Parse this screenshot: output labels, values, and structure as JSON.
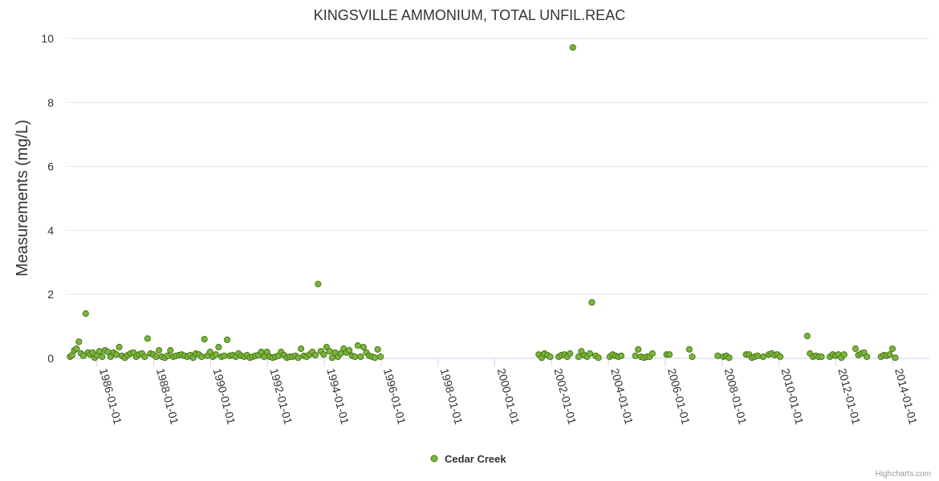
{
  "chart_data": {
    "type": "scatter",
    "title": "KINGSVILLE AMMONIUM, TOTAL UNFIL.REAC",
    "xlabel": "",
    "ylabel": "Measurements (mg/L)",
    "ylim": [
      0,
      10
    ],
    "yticks": [
      "0",
      "2",
      "4",
      "6",
      "8",
      "10"
    ],
    "xlim": [
      1984.9,
      2015.3
    ],
    "xticks": [
      {
        "label": "1986-01-01",
        "x": 1986.0
      },
      {
        "label": "1988-01-01",
        "x": 1988.0
      },
      {
        "label": "1990-01-01",
        "x": 1990.0
      },
      {
        "label": "1992-01-01",
        "x": 1992.0
      },
      {
        "label": "1994-01-01",
        "x": 1994.0
      },
      {
        "label": "1996-01-01",
        "x": 1996.0
      },
      {
        "label": "1998-01-01",
        "x": 1998.0
      },
      {
        "label": "2000-01-01",
        "x": 2000.0
      },
      {
        "label": "2002-01-01",
        "x": 2002.0
      },
      {
        "label": "2004-01-01",
        "x": 2004.0
      },
      {
        "label": "2006-01-01",
        "x": 2006.0
      },
      {
        "label": "2008-01-01",
        "x": 2008.0
      },
      {
        "label": "2010-01-01",
        "x": 2010.0
      },
      {
        "label": "2012-01-01",
        "x": 2012.0
      },
      {
        "label": "2014-01-01",
        "x": 2014.0
      }
    ],
    "grid": true,
    "legend_position": "bottom-center",
    "credits": "Highcharts.com",
    "series": [
      {
        "name": "Cedar Creek",
        "color": "#7cb342",
        "border_color": "#4a7a10",
        "points": [
          [
            1985.05,
            0.05
          ],
          [
            1985.12,
            0.1
          ],
          [
            1985.2,
            0.25
          ],
          [
            1985.28,
            0.3
          ],
          [
            1985.36,
            0.52
          ],
          [
            1985.44,
            0.15
          ],
          [
            1985.52,
            0.08
          ],
          [
            1985.6,
            1.4
          ],
          [
            1985.68,
            0.18
          ],
          [
            1985.76,
            0.12
          ],
          [
            1985.84,
            0.18
          ],
          [
            1985.92,
            0.02
          ],
          [
            1986.0,
            0.1
          ],
          [
            1986.08,
            0.22
          ],
          [
            1986.18,
            0.05
          ],
          [
            1986.28,
            0.25
          ],
          [
            1986.38,
            0.2
          ],
          [
            1986.48,
            0.05
          ],
          [
            1986.58,
            0.18
          ],
          [
            1986.68,
            0.12
          ],
          [
            1986.78,
            0.35
          ],
          [
            1986.88,
            0.08
          ],
          [
            1986.98,
            0.02
          ],
          [
            1987.08,
            0.1
          ],
          [
            1987.18,
            0.15
          ],
          [
            1987.28,
            0.18
          ],
          [
            1987.38,
            0.05
          ],
          [
            1987.48,
            0.12
          ],
          [
            1987.58,
            0.15
          ],
          [
            1987.68,
            0.05
          ],
          [
            1987.78,
            0.62
          ],
          [
            1987.88,
            0.15
          ],
          [
            1987.98,
            0.12
          ],
          [
            1988.08,
            0.05
          ],
          [
            1988.18,
            0.25
          ],
          [
            1988.28,
            0.05
          ],
          [
            1988.38,
            0.02
          ],
          [
            1988.48,
            0.08
          ],
          [
            1988.58,
            0.25
          ],
          [
            1988.68,
            0.05
          ],
          [
            1988.78,
            0.08
          ],
          [
            1988.88,
            0.1
          ],
          [
            1988.98,
            0.12
          ],
          [
            1989.08,
            0.08
          ],
          [
            1989.18,
            0.05
          ],
          [
            1989.28,
            0.1
          ],
          [
            1989.38,
            0.02
          ],
          [
            1989.48,
            0.15
          ],
          [
            1989.58,
            0.12
          ],
          [
            1989.68,
            0.05
          ],
          [
            1989.78,
            0.6
          ],
          [
            1989.88,
            0.08
          ],
          [
            1989.98,
            0.2
          ],
          [
            1990.08,
            0.05
          ],
          [
            1990.18,
            0.12
          ],
          [
            1990.28,
            0.35
          ],
          [
            1990.38,
            0.05
          ],
          [
            1990.48,
            0.08
          ],
          [
            1990.58,
            0.58
          ],
          [
            1990.68,
            0.08
          ],
          [
            1990.78,
            0.1
          ],
          [
            1990.88,
            0.05
          ],
          [
            1990.98,
            0.15
          ],
          [
            1991.08,
            0.08
          ],
          [
            1991.18,
            0.05
          ],
          [
            1991.28,
            0.1
          ],
          [
            1991.38,
            0.02
          ],
          [
            1991.48,
            0.05
          ],
          [
            1991.58,
            0.08
          ],
          [
            1991.68,
            0.1
          ],
          [
            1991.78,
            0.2
          ],
          [
            1991.88,
            0.05
          ],
          [
            1991.98,
            0.2
          ],
          [
            1992.08,
            0.05
          ],
          [
            1992.18,
            0.02
          ],
          [
            1992.28,
            0.05
          ],
          [
            1992.38,
            0.08
          ],
          [
            1992.48,
            0.2
          ],
          [
            1992.58,
            0.1
          ],
          [
            1992.68,
            0.02
          ],
          [
            1992.78,
            0.05
          ],
          [
            1992.88,
            0.05
          ],
          [
            1992.98,
            0.08
          ],
          [
            1993.08,
            0.02
          ],
          [
            1993.18,
            0.3
          ],
          [
            1993.28,
            0.08
          ],
          [
            1993.38,
            0.05
          ],
          [
            1993.48,
            0.12
          ],
          [
            1993.58,
            0.2
          ],
          [
            1993.68,
            0.1
          ],
          [
            1993.78,
            2.32
          ],
          [
            1993.88,
            0.22
          ],
          [
            1993.98,
            0.12
          ],
          [
            1994.08,
            0.35
          ],
          [
            1994.18,
            0.22
          ],
          [
            1994.28,
            0.02
          ],
          [
            1994.38,
            0.18
          ],
          [
            1994.48,
            0.05
          ],
          [
            1994.58,
            0.15
          ],
          [
            1994.68,
            0.3
          ],
          [
            1994.78,
            0.18
          ],
          [
            1994.88,
            0.25
          ],
          [
            1994.98,
            0.08
          ],
          [
            1995.08,
            0.05
          ],
          [
            1995.18,
            0.4
          ],
          [
            1995.28,
            0.05
          ],
          [
            1995.38,
            0.35
          ],
          [
            1995.48,
            0.18
          ],
          [
            1995.58,
            0.08
          ],
          [
            1995.68,
            0.05
          ],
          [
            1995.78,
            0.02
          ],
          [
            1995.88,
            0.28
          ],
          [
            1995.98,
            0.05
          ],
          [
            2001.55,
            0.12
          ],
          [
            2001.65,
            0.02
          ],
          [
            2001.75,
            0.15
          ],
          [
            2001.85,
            0.1
          ],
          [
            2001.95,
            0.05
          ],
          [
            2002.25,
            0.05
          ],
          [
            2002.35,
            0.1
          ],
          [
            2002.45,
            0.12
          ],
          [
            2002.55,
            0.05
          ],
          [
            2002.65,
            0.15
          ],
          [
            2002.75,
            9.72
          ],
          [
            2002.95,
            0.05
          ],
          [
            2003.05,
            0.22
          ],
          [
            2003.15,
            0.1
          ],
          [
            2003.25,
            0.05
          ],
          [
            2003.35,
            0.15
          ],
          [
            2003.42,
            1.75
          ],
          [
            2003.55,
            0.08
          ],
          [
            2003.65,
            0.02
          ],
          [
            2004.05,
            0.05
          ],
          [
            2004.15,
            0.12
          ],
          [
            2004.25,
            0.08
          ],
          [
            2004.35,
            0.05
          ],
          [
            2004.45,
            0.08
          ],
          [
            2004.95,
            0.08
          ],
          [
            2005.05,
            0.28
          ],
          [
            2005.15,
            0.05
          ],
          [
            2005.25,
            0.02
          ],
          [
            2005.35,
            0.05
          ],
          [
            2005.45,
            0.05
          ],
          [
            2005.55,
            0.15
          ],
          [
            2006.05,
            0.12
          ],
          [
            2006.15,
            0.12
          ],
          [
            2006.85,
            0.28
          ],
          [
            2006.95,
            0.05
          ],
          [
            2007.85,
            0.08
          ],
          [
            2008.05,
            0.05
          ],
          [
            2008.15,
            0.08
          ],
          [
            2008.25,
            0.02
          ],
          [
            2008.85,
            0.12
          ],
          [
            2008.95,
            0.12
          ],
          [
            2009.05,
            0.02
          ],
          [
            2009.15,
            0.05
          ],
          [
            2009.25,
            0.08
          ],
          [
            2009.45,
            0.05
          ],
          [
            2009.65,
            0.12
          ],
          [
            2009.75,
            0.15
          ],
          [
            2009.85,
            0.1
          ],
          [
            2009.95,
            0.12
          ],
          [
            2010.05,
            0.05
          ],
          [
            2011.0,
            0.7
          ],
          [
            2011.1,
            0.15
          ],
          [
            2011.2,
            0.05
          ],
          [
            2011.3,
            0.08
          ],
          [
            2011.4,
            0.05
          ],
          [
            2011.5,
            0.05
          ],
          [
            2011.8,
            0.05
          ],
          [
            2011.9,
            0.12
          ],
          [
            2012.0,
            0.08
          ],
          [
            2012.1,
            0.12
          ],
          [
            2012.2,
            0.02
          ],
          [
            2012.3,
            0.12
          ],
          [
            2012.7,
            0.3
          ],
          [
            2012.8,
            0.1
          ],
          [
            2012.9,
            0.15
          ],
          [
            2013.0,
            0.18
          ],
          [
            2013.1,
            0.05
          ],
          [
            2013.6,
            0.05
          ],
          [
            2013.7,
            0.1
          ],
          [
            2013.8,
            0.08
          ],
          [
            2013.9,
            0.12
          ],
          [
            2014.0,
            0.3
          ],
          [
            2014.1,
            0.02
          ]
        ]
      }
    ]
  }
}
